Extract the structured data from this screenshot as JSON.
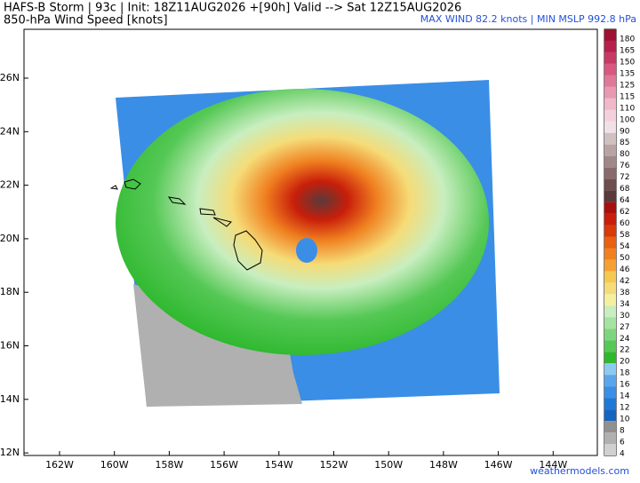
{
  "header": {
    "title_line1": "HAFS-B Storm | 93c | Init: 18Z11AUG2026 +[90h] Valid --> Sat 12Z15AUG2026",
    "title_line2": "850-hPa Wind Speed [knots]",
    "stats": "MAX WIND 82.2 knots | MIN MSLP 992.8 hPa"
  },
  "map": {
    "lat_labels": [
      "26N",
      "24N",
      "22N",
      "20N",
      "18N",
      "16N",
      "14N",
      "12N"
    ],
    "lon_labels": [
      "162W",
      "160W",
      "158W",
      "156W",
      "154W",
      "152W",
      "150W",
      "148W",
      "146W",
      "144W"
    ],
    "credit": "weathermodels.com"
  },
  "colorbar": {
    "levels": [
      180,
      165,
      150,
      135,
      125,
      115,
      110,
      100,
      90,
      85,
      80,
      76,
      72,
      68,
      64,
      62,
      60,
      58,
      54,
      50,
      46,
      42,
      38,
      34,
      30,
      27,
      24,
      22,
      20,
      18,
      16,
      14,
      12,
      10,
      8,
      6,
      4
    ],
    "colors": [
      "#a01030",
      "#b8204c",
      "#c83a66",
      "#d85880",
      "#e07898",
      "#e898b0",
      "#f0b8c8",
      "#f4d0dc",
      "#f0e0e8",
      "#d0c0c0",
      "#b8a4a4",
      "#a08888",
      "#8a6a6a",
      "#6e4e4e",
      "#5a3a3a",
      "#a81010",
      "#c81e0a",
      "#d83a0a",
      "#e86010",
      "#f08020",
      "#f5a030",
      "#f5c850",
      "#f5dc78",
      "#f5f0a0",
      "#c8eec0",
      "#a5e3a0",
      "#7dd67d",
      "#55c855",
      "#2eb82e",
      "#8ccaf2",
      "#5aa6ec",
      "#3a8ee6",
      "#1e78d8",
      "#1565c0",
      "#909090",
      "#b0b0b0",
      "#d0d0d0"
    ]
  }
}
